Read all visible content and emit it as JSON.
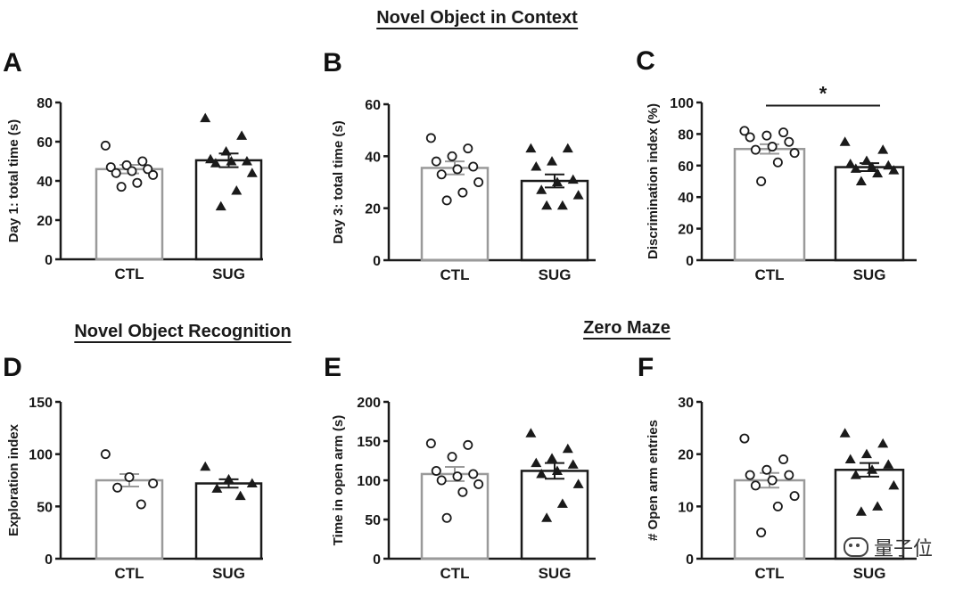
{
  "figure": {
    "headings": {
      "context": "Novel Object in Context",
      "recognition": "Novel Object Recognition",
      "zero_maze": "Zero Maze"
    },
    "watermark": "量子位"
  },
  "colors": {
    "ctl_bar": "#9a9a9a",
    "sug_bar": "#1a1a1a",
    "marker": "#1a1a1a"
  },
  "chart_data": [
    {
      "panel": "A",
      "type": "bar",
      "title": "Novel Object in Context",
      "ylabel": "Day 1: total time (s)",
      "ylim": [
        0,
        80
      ],
      "yticks": [
        0,
        20,
        40,
        60,
        80
      ],
      "categories": [
        "CTL",
        "SUG"
      ],
      "values": [
        46,
        50.5
      ],
      "sem": [
        2.2,
        3.5
      ],
      "points": [
        [
          58,
          50,
          48,
          47,
          46,
          45,
          44,
          43,
          39,
          37
        ],
        [
          72,
          63,
          55,
          51,
          50,
          50,
          49,
          44,
          35,
          27
        ]
      ],
      "significance": null
    },
    {
      "panel": "B",
      "type": "bar",
      "title": "Novel Object in Context",
      "ylabel": "Day 3: total time (s)",
      "ylim": [
        0,
        60
      ],
      "yticks": [
        0,
        20,
        40,
        60
      ],
      "categories": [
        "CTL",
        "SUG"
      ],
      "values": [
        35.5,
        30.5
      ],
      "sem": [
        2.5,
        2.5
      ],
      "points": [
        [
          47,
          43,
          40,
          38,
          36,
          35,
          33,
          30,
          26,
          23
        ],
        [
          43,
          43,
          38,
          36,
          31,
          30,
          27,
          25,
          21,
          21
        ]
      ],
      "significance": null
    },
    {
      "panel": "C",
      "type": "bar",
      "title": "Novel Object in Context",
      "ylabel": "Discrimination index (%)",
      "ylim": [
        0,
        100
      ],
      "yticks": [
        0,
        20,
        40,
        60,
        80,
        100
      ],
      "categories": [
        "CTL",
        "SUG"
      ],
      "values": [
        70.5,
        59
      ],
      "sem": [
        3,
        2.5
      ],
      "points": [
        [
          82,
          81,
          79,
          78,
          75,
          72,
          70,
          68,
          62,
          50
        ],
        [
          75,
          70,
          63,
          61,
          60,
          59,
          58,
          57,
          55,
          50
        ]
      ],
      "significance": "*"
    },
    {
      "panel": "D",
      "type": "bar",
      "title": "Novel Object Recognition",
      "ylabel": "Exploration index",
      "ylim": [
        0,
        150
      ],
      "yticks": [
        0,
        50,
        100,
        150
      ],
      "categories": [
        "CTL",
        "SUG"
      ],
      "values": [
        75,
        72
      ],
      "sem": [
        6,
        4
      ],
      "points": [
        [
          100,
          78,
          72,
          68,
          52
        ],
        [
          88,
          76,
          72,
          67,
          60
        ]
      ],
      "significance": null
    },
    {
      "panel": "E",
      "type": "bar",
      "title": "Zero Maze",
      "ylabel": "Time in open arm (s)",
      "ylim": [
        0,
        200
      ],
      "yticks": [
        0,
        50,
        100,
        150,
        200
      ],
      "categories": [
        "CTL",
        "SUG"
      ],
      "values": [
        108,
        112
      ],
      "sem": [
        9,
        10
      ],
      "points": [
        [
          147,
          145,
          130,
          112,
          108,
          105,
          100,
          95,
          85,
          52
        ],
        [
          160,
          140,
          128,
          122,
          120,
          112,
          108,
          95,
          70,
          52
        ]
      ],
      "significance": null
    },
    {
      "panel": "F",
      "type": "bar",
      "title": "Zero Maze",
      "ylabel": "# Open arm entries",
      "ylim": [
        0,
        30
      ],
      "yticks": [
        0,
        10,
        20,
        30
      ],
      "categories": [
        "CTL",
        "SUG"
      ],
      "values": [
        15,
        17
      ],
      "sem": [
        1.4,
        1.3
      ],
      "points": [
        [
          23,
          19,
          17,
          16,
          16,
          15,
          14,
          12,
          10,
          5
        ],
        [
          24,
          22,
          20,
          19,
          18,
          17,
          16,
          14,
          10,
          9
        ]
      ],
      "significance": null
    }
  ]
}
